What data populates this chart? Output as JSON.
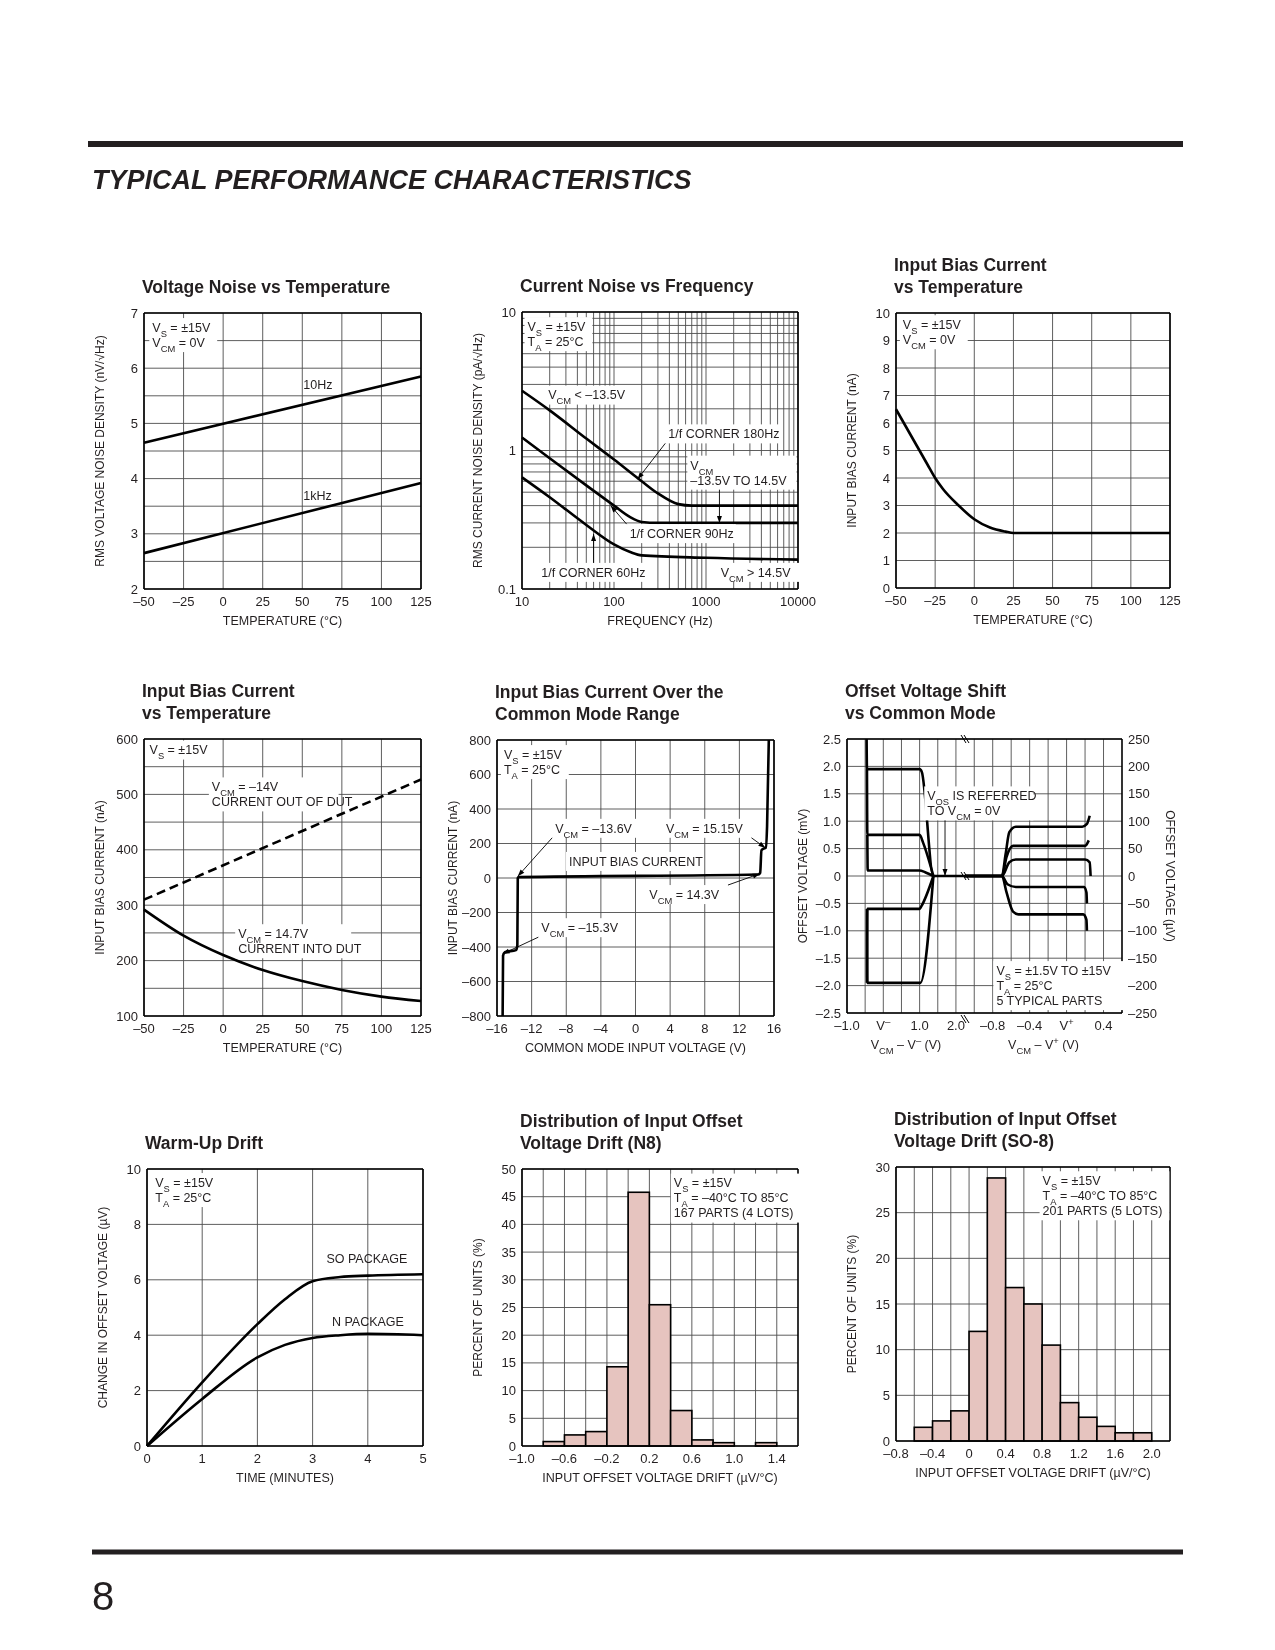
{
  "chart_data": [
    {
      "type": "line",
      "title": "Voltage Noise vs Temperature",
      "xlabel": "TEMPERATURE (°C)",
      "ylabel": "RMS VOLTAGE NOISE DENSITY (nV/√Hz)",
      "xlim": [
        -50,
        125
      ],
      "xticks": [
        {
          "value": -50,
          "label": "–50"
        },
        {
          "value": -25,
          "label": "–25"
        },
        0,
        25,
        50,
        75,
        100,
        125
      ],
      "ylim": [
        2,
        7
      ],
      "yticks": [
        2,
        {
          "value": 2.5,
          "label": null
        },
        3,
        {
          "value": 3.5,
          "label": null
        },
        4,
        {
          "value": 4.5,
          "label": null
        },
        5,
        {
          "value": 5.5,
          "label": null
        },
        6,
        {
          "value": 6.5,
          "label": null
        },
        7
      ],
      "grid": true,
      "annotations": [
        "TYPICAL PERFORMANCE CHARACTERISTICS",
        "8",
        "V$_{S}$ = ±15V\nV$_{CM}$ = 0V"
      ],
      "series": [
        {
          "name": "10Hz",
          "color": "#000000",
          "x": [
            -50,
            125
          ],
          "values": [
            4.65,
            5.85
          ]
        },
        {
          "name": "1kHz",
          "color": "#000000",
          "x": [
            -50,
            125
          ],
          "values": [
            2.65,
            3.92
          ]
        }
      ]
    },
    {
      "type": "line",
      "title": "Current Noise vs Frequency",
      "xlabel": "FREQUENCY (Hz)",
      "ylabel": "RMS CURRENT NOISE DENSITY (pA/√Hz)",
      "log": "xy",
      "xlim": [
        10,
        10000
      ],
      "xticks": [
        10,
        {
          "value": 20,
          "label": null
        },
        {
          "value": 30,
          "label": null
        },
        {
          "value": 40,
          "label": null
        },
        {
          "value": 50,
          "label": null
        },
        {
          "value": 60,
          "label": null
        },
        {
          "value": 70,
          "label": null
        },
        {
          "value": 80,
          "label": null
        },
        {
          "value": 90,
          "label": null
        },
        100,
        {
          "value": 200,
          "label": null
        },
        {
          "value": 300,
          "label": null
        },
        {
          "value": 400,
          "label": null
        },
        {
          "value": 500,
          "label": null
        },
        {
          "value": 600,
          "label": null
        },
        {
          "value": 700,
          "label": null
        },
        {
          "value": 800,
          "label": null
        },
        {
          "value": 900,
          "label": null
        },
        1000,
        {
          "value": 2000,
          "label": null
        },
        {
          "value": 3000,
          "label": null
        },
        {
          "value": 4000,
          "label": null
        },
        {
          "value": 5000,
          "label": null
        },
        {
          "value": 6000,
          "label": null
        },
        {
          "value": 7000,
          "label": null
        },
        {
          "value": 8000,
          "label": null
        },
        {
          "value": 9000,
          "label": null
        },
        10000
      ],
      "ylim": [
        0.1,
        10
      ],
      "yticks": [
        0.1,
        {
          "value": 0.2,
          "label": null
        },
        {
          "value": 0.3,
          "label": null
        },
        {
          "value": 0.4,
          "label": null
        },
        {
          "value": 0.5,
          "label": null
        },
        {
          "value": 0.6,
          "label": null
        },
        {
          "value": 0.7,
          "label": null
        },
        {
          "value": 0.8,
          "label": null
        },
        {
          "value": 0.9,
          "label": null
        },
        1,
        {
          "value": 2,
          "label": null
        },
        {
          "value": 3,
          "label": null
        },
        {
          "value": 4,
          "label": null
        },
        {
          "value": 5,
          "label": null
        },
        {
          "value": 6,
          "label": null
        },
        {
          "value": 7,
          "label": null
        },
        {
          "value": 8,
          "label": null
        },
        {
          "value": 9,
          "label": null
        },
        10
      ],
      "grid": true,
      "annotations": [
        "V$_{S}$ = ±15V\nT$_{A}$ = 25°C",
        "V$_{CM}$ < –13.5V",
        {
          "text": "1/f CORNER 180Hz",
          "x": 180,
          "y": 0.62
        },
        {
          "text": "V$_{CM}$\n–13.5V TO 14.5V",
          "x": 1400,
          "y": 0.3
        },
        {
          "text": "1/f CORNER 90Hz",
          "x": 92,
          "y": 0.4
        },
        {
          "text": "1/f CORNER 60Hz",
          "x": 60,
          "y": 0.25
        },
        "V$_{CM}$ > 14.5V"
      ],
      "series": [
        {
          "color": "#000000",
          "x": [
            10,
            20,
            50,
            100,
            200,
            300,
            500,
            700,
            1000,
            10000
          ],
          "values": [
            2.7,
            1.95,
            1.22,
            0.86,
            0.6,
            0.49,
            0.41,
            0.4,
            0.4,
            0.4
          ]
        },
        {
          "color": "#000000",
          "x": [
            10,
            20,
            50,
            100,
            150,
            200,
            300,
            1000,
            10000
          ],
          "values": [
            1.24,
            0.88,
            0.56,
            0.4,
            0.33,
            0.305,
            0.3,
            0.3,
            0.3
          ]
        },
        {
          "color": "#000000",
          "x": [
            10,
            20,
            50,
            100,
            150,
            200,
            1000,
            10000
          ],
          "values": [
            0.64,
            0.46,
            0.29,
            0.21,
            0.185,
            0.175,
            0.168,
            0.163
          ]
        }
      ]
    },
    {
      "type": "line",
      "title": "Input Bias Current vs Temperature",
      "xlabel": "TEMPERATURE (°C)",
      "ylabel": "INPUT BIAS CURRENT (nA)",
      "xlim": [
        -50,
        125
      ],
      "xticks": [
        {
          "value": -50,
          "label": "–50"
        },
        {
          "value": -25,
          "label": "–25"
        },
        0,
        25,
        50,
        75,
        100,
        125
      ],
      "ylim": [
        0,
        10
      ],
      "yticks": [
        0,
        1,
        2,
        3,
        4,
        5,
        6,
        7,
        8,
        9,
        10
      ],
      "grid": true,
      "annotations": [
        "V$_{S}$ = ±15V\nV$_{CM}$ = 0V"
      ],
      "series": [
        {
          "color": "#000000",
          "x": [
            -50,
            -40,
            -30,
            -25,
            -20,
            -10,
            0,
            10,
            20,
            25,
            125
          ],
          "values": [
            6.5,
            5.5,
            4.5,
            4.0,
            3.6,
            3.0,
            2.5,
            2.2,
            2.05,
            2.0,
            2.0
          ]
        }
      ]
    },
    {
      "type": "line",
      "title": "Input Bias Current vs Temperature",
      "xlabel": "TEMPERATURE (°C)",
      "ylabel": "INPUT BIAS CURRENT (nA)",
      "xlim": [
        -50,
        125
      ],
      "xticks": [
        {
          "value": -50,
          "label": "–50"
        },
        {
          "value": -25,
          "label": "–25"
        },
        0,
        25,
        50,
        75,
        100,
        125
      ],
      "ylim": [
        100,
        600
      ],
      "yticks": [
        100,
        {
          "value": 150,
          "label": null
        },
        200,
        {
          "value": 250,
          "label": null
        },
        300,
        {
          "value": 350,
          "label": null
        },
        400,
        {
          "value": 450,
          "label": null
        },
        500,
        {
          "value": 550,
          "label": null
        },
        600
      ],
      "grid": true,
      "annotations": [
        "V$_{S}$ = ±15V",
        "V$_{CM}$ = –14V\nCURRENT OUT OF DUT",
        "V$_{CM}$ = 14.7V\nCURRENT INTO DUT"
      ],
      "series": [
        {
          "color": "#000000",
          "line_style": "dashed",
          "x": [
            -50,
            125
          ],
          "values": [
            310,
            527
          ]
        },
        {
          "color": "#000000",
          "x": [
            -50,
            -25,
            0,
            25,
            50,
            75,
            100,
            125
          ],
          "values": [
            292,
            245,
            210,
            183,
            163,
            147,
            135,
            127
          ]
        }
      ]
    },
    {
      "type": "line",
      "title": "Input Bias Current Over the Common Mode Range",
      "xlabel": "COMMON MODE INPUT VOLTAGE (V)",
      "ylabel": "INPUT BIAS CURRENT (nA)",
      "xlim": [
        -16,
        16
      ],
      "xticks": [
        {
          "value": -16,
          "label": "–16"
        },
        {
          "value": -12,
          "label": "–12"
        },
        {
          "value": -8,
          "label": "–8"
        },
        {
          "value": -4,
          "label": "–4"
        },
        0,
        4,
        8,
        12,
        16
      ],
      "ylim": [
        -800,
        800
      ],
      "yticks": [
        {
          "value": -800,
          "label": "–800"
        },
        {
          "value": -600,
          "label": "–600"
        },
        {
          "value": -400,
          "label": "–400"
        },
        {
          "value": -200,
          "label": "–200"
        },
        0,
        200,
        400,
        600,
        800
      ],
      "grid": true,
      "annotations": [
        "V$_{S}$ = ±15V\nT$_{A}$ = 25°C",
        {
          "text": "V$_{CM}$ = –13.6V",
          "x": -13.6,
          "y": 10
        },
        {
          "text": "V$_{CM}$ = 15.15V",
          "x": 15.0,
          "y": 175
        },
        "INPUT BIAS CURRENT",
        {
          "text": "V$_{CM}$ = 14.3V",
          "x": 14.35,
          "y": 25
        },
        {
          "text": "V$_{CM}$ = –15.3V",
          "x": -15.35,
          "y": -440
        }
      ],
      "series": [
        {
          "color": "#000000",
          "x": [
            -15.35,
            -15.3,
            -15.1,
            -13.8,
            -13.65,
            -13.6,
            -13.5,
            14.2,
            14.4,
            14.55,
            14.8,
            15.05,
            15.2,
            15.4
          ],
          "values": [
            -800,
            -450,
            -430,
            -418,
            -390,
            0,
            5,
            20,
            30,
            160,
            170,
            175,
            300,
            800
          ]
        }
      ]
    },
    {
      "type": "line",
      "title": "Offset Voltage Shift vs Common Mode",
      "xlabel": "V$_{CM}$ – V$^{–}$ (V)",
      "ylabel": "OFFSET VOLTAGE (mV)",
      "xlim": [
        -1.0,
        2.25
      ],
      "xticks": [
        {
          "value": -1.0,
          "label": "–1.0"
        },
        {
          "value": -0.5,
          "label": null
        },
        {
          "value": 0,
          "label": "V$^{–}$"
        },
        {
          "value": 0.5,
          "label": null
        },
        {
          "value": 1.0,
          "label": "1.0"
        },
        {
          "value": 1.5,
          "label": null
        },
        {
          "value": 2.0,
          "label": "2.0"
        }
      ],
      "ylim": [
        -2.5,
        2.5
      ],
      "yticks": [
        {
          "value": -2.5,
          "label": "–2.5"
        },
        {
          "value": -2.0,
          "label": "–2.0"
        },
        {
          "value": -1.5,
          "label": "–1.5"
        },
        {
          "value": -1.0,
          "label": "–1.0"
        },
        {
          "value": -0.5,
          "label": "–0.5"
        },
        0,
        {
          "value": 0.5,
          "label": "0.5"
        },
        {
          "value": 1.0,
          "label": "1.0"
        },
        {
          "value": 1.5,
          "label": "1.5"
        },
        {
          "value": 2.0,
          "label": "2.0"
        },
        {
          "value": 2.5,
          "label": "2.5"
        }
      ],
      "grid": true,
      "annotations": [
        {
          "text": "V$_{OS}$ IS REFERRED\nTO V$_{CM}$ = 0V",
          "x": 1.7,
          "y": 0
        }
      ],
      "series": [
        {
          "color": "#000000",
          "x": [
            -0.46,
            -0.45,
            1.0,
            1.06,
            1.38,
            2.25
          ],
          "values": [
            2.5,
            1.95,
            1.95,
            1.9,
            0,
            0
          ]
        },
        {
          "color": "#000000",
          "x": [
            -0.45,
            -0.44,
            1.0,
            1.1,
            1.38
          ],
          "values": [
            1.95,
            0.75,
            0.75,
            0.6,
            0
          ]
        },
        {
          "color": "#000000",
          "x": [
            -0.44,
            -0.43,
            1.0,
            1.15,
            1.38
          ],
          "values": [
            0.75,
            0.1,
            0.1,
            0.07,
            0
          ]
        },
        {
          "color": "#000000",
          "x": [
            -0.45,
            -0.44,
            1.0,
            1.05,
            1.38
          ],
          "values": [
            -1.95,
            -0.6,
            -0.6,
            -0.55,
            0
          ]
        },
        {
          "color": "#000000",
          "x": [
            -0.45,
            -0.44,
            1.02,
            1.38
          ],
          "values": [
            -0.6,
            -1.95,
            -1.95,
            0
          ]
        }
      ]
    },
    {
      "type": "line",
      "xlabel": "V$_{CM}$ – V$^{+}$ (V)",
      "y2label": "OFFSET VOLTAGE (µV)",
      "xlim": [
        -1.1,
        0.6
      ],
      "xticks": [
        {
          "value": -1.0,
          "label": null
        },
        {
          "value": -0.8,
          "label": "–0.8"
        },
        {
          "value": -0.6,
          "label": null
        },
        {
          "value": -0.4,
          "label": "–0.4"
        },
        {
          "value": -0.2,
          "label": null
        },
        {
          "value": 0,
          "label": "V$^{+}$"
        },
        {
          "value": 0.2,
          "label": null
        },
        {
          "value": 0.4,
          "label": "0.4"
        }
      ],
      "y2lim": [
        -250,
        250
      ],
      "y2ticks": [
        {
          "value": -250,
          "label": "–250"
        },
        {
          "value": -200,
          "label": "–200"
        },
        {
          "value": -150,
          "label": "–150"
        },
        {
          "value": -100,
          "label": "–100"
        },
        {
          "value": -50,
          "label": "–50"
        },
        0,
        50,
        100,
        150,
        200,
        250
      ],
      "grid": true,
      "annotations": [
        "V$_{S}$ = ±1.5V TO ±15V\nT$_{A}$ = 25°C\n5 TYPICAL PARTS"
      ],
      "series": [
        {
          "color": "#000000",
          "axis": "y2",
          "x": [
            -1.1,
            -0.7,
            -0.66,
            -0.62,
            -0.55,
            0.17,
            0.22,
            0.25
          ],
          "values": [
            0,
            0,
            40,
            80,
            90,
            90,
            95,
            110
          ]
        },
        {
          "color": "#000000",
          "axis": "y2",
          "x": [
            -1.1,
            -0.7,
            -0.65,
            -0.58,
            0.2,
            0.24
          ],
          "values": [
            0,
            0,
            35,
            55,
            55,
            65
          ]
        },
        {
          "color": "#000000",
          "axis": "y2",
          "x": [
            -1.1,
            -0.7,
            -0.62,
            -0.55,
            0.2,
            0.25,
            0.26
          ],
          "values": [
            0,
            0,
            25,
            30,
            30,
            25,
            0
          ]
        },
        {
          "color": "#000000",
          "axis": "y2",
          "x": [
            -1.1,
            -0.7,
            -0.64,
            -0.55,
            0.19,
            0.215,
            0.22
          ],
          "values": [
            0,
            0,
            -15,
            -20,
            -20,
            -30,
            -50
          ]
        },
        {
          "color": "#000000",
          "axis": "y2",
          "x": [
            -1.1,
            -0.7,
            -0.65,
            -0.58,
            -0.52,
            0.18,
            0.215,
            0.22
          ],
          "values": [
            0,
            0,
            -30,
            -65,
            -70,
            -70,
            -80,
            -100
          ]
        }
      ]
    },
    {
      "type": "line",
      "title": "Warm-Up Drift",
      "xlabel": "TIME (MINUTES)",
      "ylabel": "CHANGE IN OFFSET VOLTAGE (µV)",
      "xlim": [
        0,
        5
      ],
      "xticks": [
        0,
        1,
        2,
        3,
        4,
        5
      ],
      "ylim": [
        0,
        10
      ],
      "yticks": [
        0,
        2,
        4,
        6,
        8,
        10
      ],
      "grid": true,
      "annotations": [
        "V$_{S}$ = ±15V\nT$_{A}$ = 25°C"
      ],
      "series": [
        {
          "name": "SO PACKAGE",
          "color": "#000000",
          "x": [
            0,
            1,
            2,
            2.5,
            3,
            3.5,
            4,
            5
          ],
          "values": [
            0,
            2.3,
            4.4,
            5.3,
            5.95,
            6.1,
            6.15,
            6.2
          ]
        },
        {
          "name": "N PACKAGE",
          "color": "#000000",
          "x": [
            0,
            1,
            2,
            2.5,
            3,
            3.5,
            4,
            5
          ],
          "values": [
            0,
            1.7,
            3.2,
            3.65,
            3.9,
            4.0,
            4.05,
            4.0
          ]
        }
      ]
    },
    {
      "type": "histogram",
      "title": "Distribution of Input Offset Voltage Drift (N8)",
      "xlabel": "INPUT OFFSET VOLTAGE DRIFT (µV/°C)",
      "ylabel": "PERCENT OF UNITS (%)",
      "xlim": [
        -1.0,
        1.6
      ],
      "xticks": [
        {
          "value": -1.0,
          "label": "–1.0"
        },
        {
          "value": -0.8,
          "label": null
        },
        {
          "value": -0.6,
          "label": "–0.6"
        },
        {
          "value": -0.4,
          "label": null
        },
        {
          "value": -0.2,
          "label": "–0.2"
        },
        {
          "value": 0,
          "label": null
        },
        {
          "value": 0.2,
          "label": "0.2"
        },
        {
          "value": 0.4,
          "label": null
        },
        {
          "value": 0.6,
          "label": "0.6"
        },
        {
          "value": 0.8,
          "label": null
        },
        {
          "value": 1.0,
          "label": "1.0"
        },
        {
          "value": 1.2,
          "label": null
        },
        {
          "value": 1.4,
          "label": "1.4"
        }
      ],
      "ylim": [
        0,
        50
      ],
      "yticks": [
        0,
        5,
        10,
        15,
        20,
        25,
        30,
        35,
        40,
        45,
        50
      ],
      "grid": true,
      "color": "#e6c4bf",
      "annotations": [
        "V$_{S}$ = ±15V\nT$_{A}$ = –40°C TO 85°C\n167 PARTS (4 LOTS)"
      ],
      "bins": [
        -0.8,
        -0.6,
        -0.4,
        -0.2,
        0,
        0.2,
        0.4,
        0.6,
        0.8,
        1.0,
        1.2,
        1.4
      ],
      "values": [
        0.8,
        2.0,
        2.6,
        14.3,
        45.8,
        25.5,
        6.4,
        1.1,
        0.6,
        0,
        0.6
      ]
    },
    {
      "type": "histogram",
      "title": "Distribution of Input Offset Voltage Drift (SO-8)",
      "xlabel": "INPUT OFFSET VOLTAGE DRIFT (µV/°C)",
      "ylabel": "PERCENT OF UNITS (%)",
      "xlim": [
        -0.8,
        2.2
      ],
      "xticks": [
        {
          "value": -0.8,
          "label": "–0.8"
        },
        {
          "value": -0.6,
          "label": null
        },
        {
          "value": -0.4,
          "label": "–0.4"
        },
        {
          "value": -0.2,
          "label": null
        },
        0,
        {
          "value": 0.2,
          "label": null
        },
        {
          "value": 0.4,
          "label": "0.4"
        },
        {
          "value": 0.6,
          "label": null
        },
        {
          "value": 0.8,
          "label": "0.8"
        },
        {
          "value": 1.0,
          "label": null
        },
        {
          "value": 1.2,
          "label": "1.2"
        },
        {
          "value": 1.4,
          "label": null
        },
        {
          "value": 1.6,
          "label": "1.6"
        },
        {
          "value": 1.8,
          "label": null
        },
        {
          "value": 2.0,
          "label": "2.0"
        }
      ],
      "ylim": [
        0,
        30
      ],
      "yticks": [
        0,
        5,
        10,
        15,
        20,
        25,
        30
      ],
      "grid": true,
      "color": "#e6c4bf",
      "annotations": [
        "V$_{S}$ = ±15V\nT$_{A}$ = –40°C TO 85°C\n201 PARTS (5 LOTS)"
      ],
      "bins": [
        -0.6,
        -0.4,
        -0.2,
        0,
        0.2,
        0.4,
        0.6,
        0.8,
        1.0,
        1.2,
        1.4,
        1.6,
        1.8,
        2.0
      ],
      "values": [
        1.5,
        2.2,
        3.3,
        12,
        28.8,
        16.8,
        15,
        10.5,
        4.2,
        2.6,
        1.6,
        0.9,
        0.9
      ]
    }
  ]
}
